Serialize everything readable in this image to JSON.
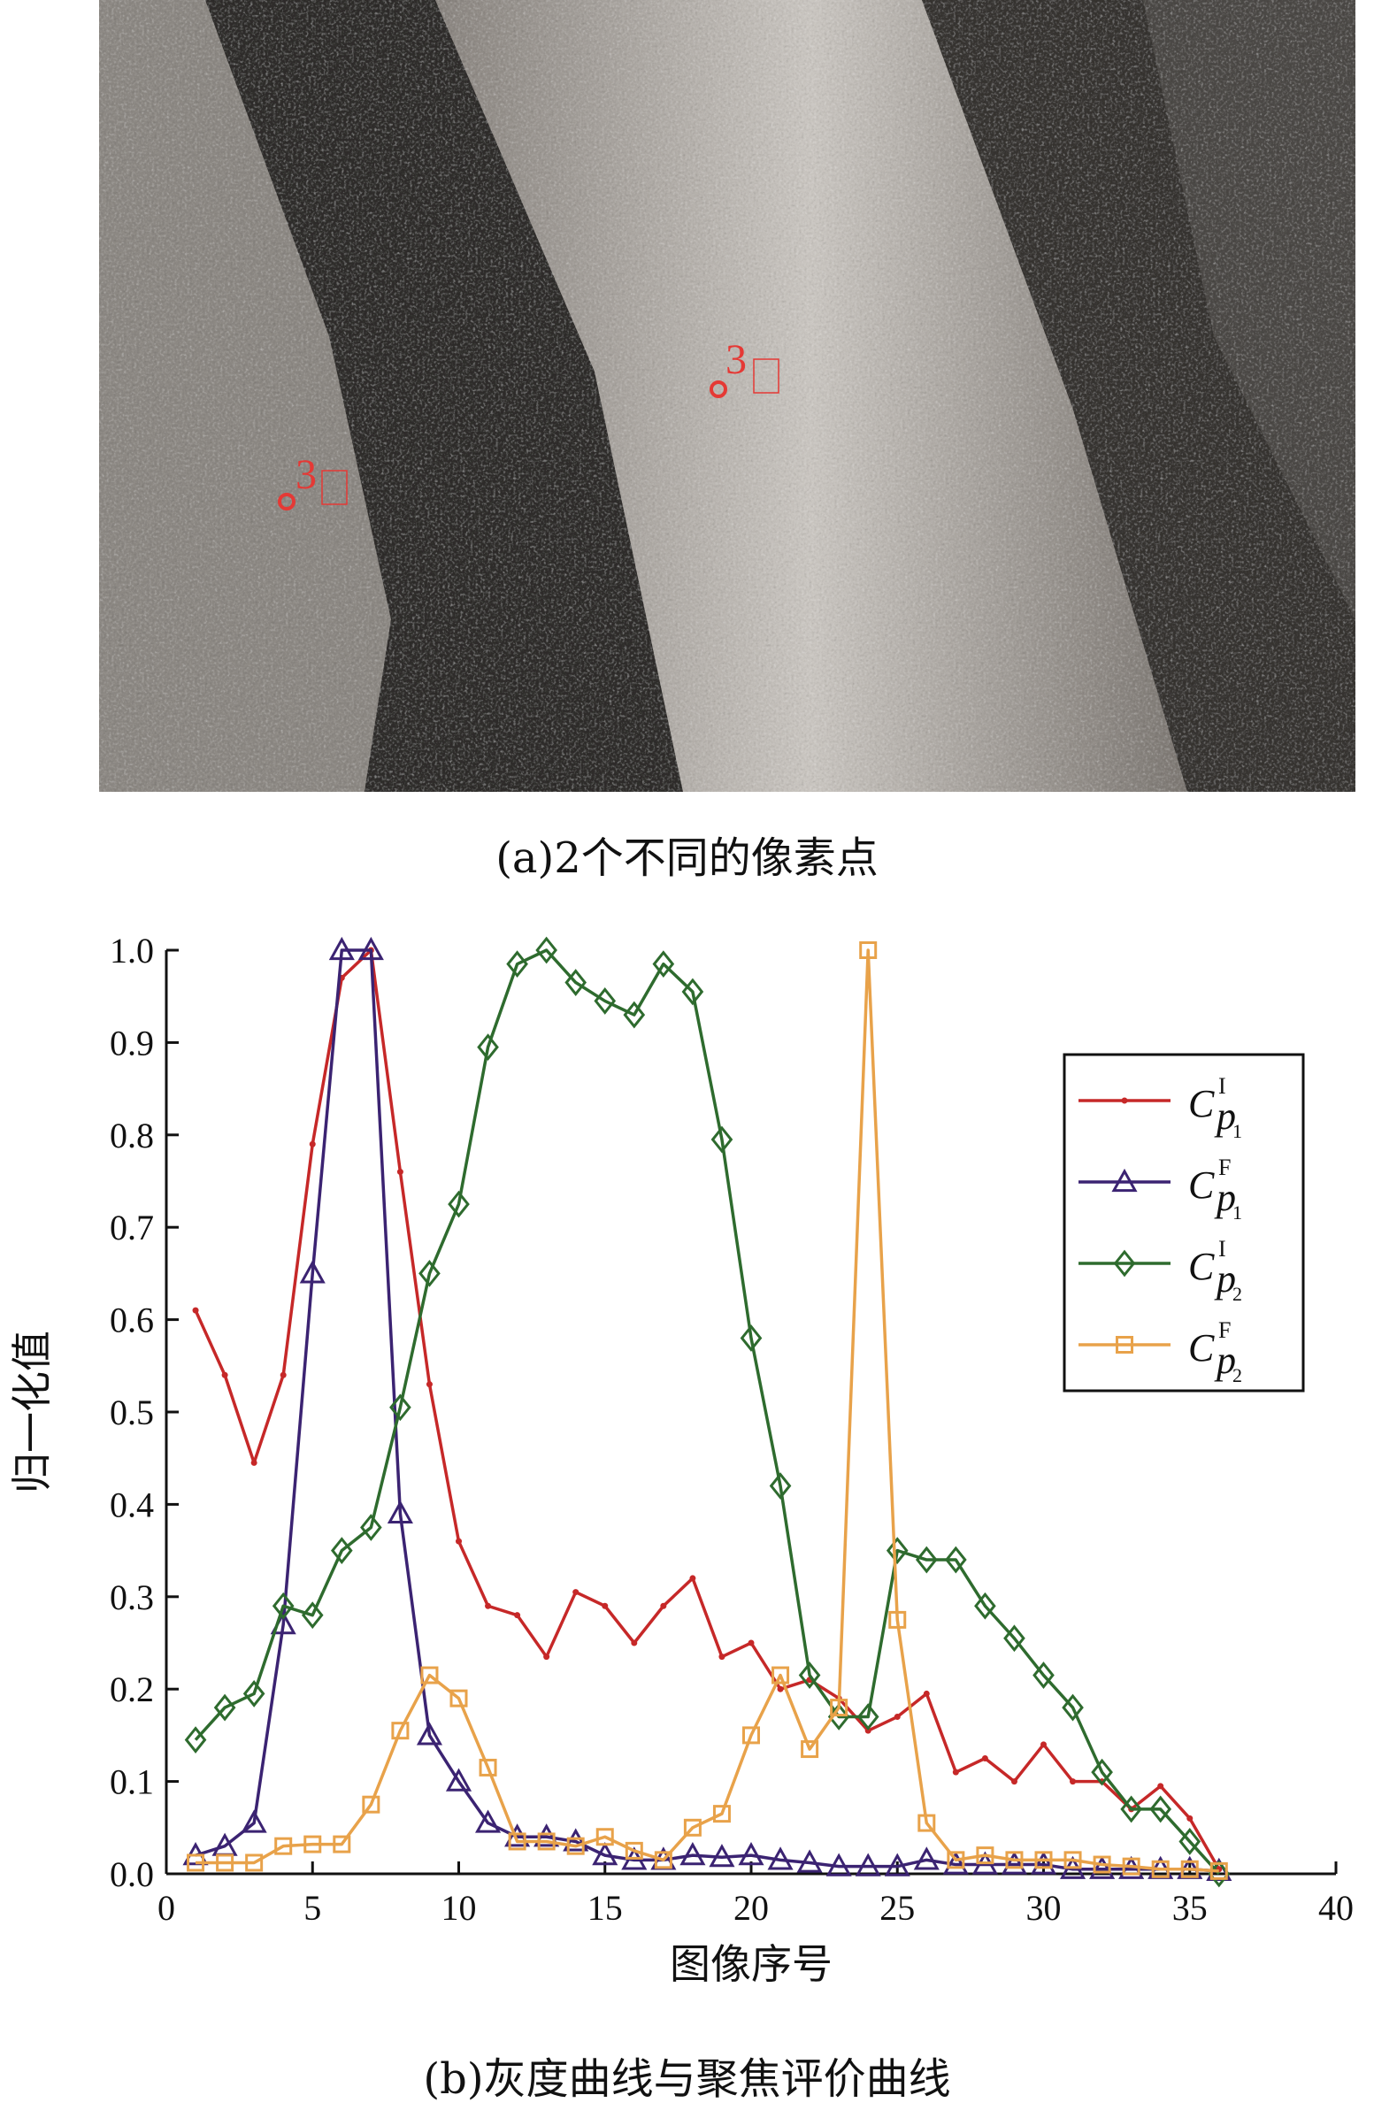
{
  "captions": {
    "a": "(a)2个不同的像素点",
    "b": "(b)灰度曲线与聚焦评价曲线"
  },
  "photo": {
    "markers": [
      {
        "label": "3"
      },
      {
        "label": "3"
      }
    ],
    "marker_color": "#e53935"
  },
  "chart_data": {
    "type": "line",
    "xlabel": "图像序号",
    "ylabel": "归一化值",
    "xlim": [
      0,
      40
    ],
    "ylim": [
      0,
      1.0
    ],
    "xticks": [
      0,
      5,
      10,
      15,
      20,
      25,
      30,
      35,
      40
    ],
    "yticks": [
      0.0,
      0.1,
      0.2,
      0.3,
      0.4,
      0.5,
      0.6,
      0.7,
      0.8,
      0.9,
      1.0
    ],
    "ytick_labels": [
      "0.0",
      "0.1",
      "0.2",
      "0.3",
      "0.4",
      "0.5",
      "0.6",
      "0.7",
      "0.8",
      "0.9",
      "1.0"
    ],
    "grid": false,
    "legend_position": "top-right",
    "x": [
      1,
      2,
      3,
      4,
      5,
      6,
      7,
      8,
      9,
      10,
      11,
      12,
      13,
      14,
      15,
      16,
      17,
      18,
      19,
      20,
      21,
      22,
      23,
      24,
      25,
      26,
      27,
      28,
      29,
      30,
      31,
      32,
      33,
      34,
      35,
      36
    ],
    "series": [
      {
        "name": "C_p1^I",
        "legend": {
          "base": "C",
          "sub": "p",
          "subsub": "1",
          "sup": "I"
        },
        "color": "#c62828",
        "marker": "dot",
        "values": [
          0.61,
          0.54,
          0.445,
          0.54,
          0.79,
          0.97,
          1.0,
          0.76,
          0.53,
          0.36,
          0.29,
          0.28,
          0.235,
          0.305,
          0.29,
          0.25,
          0.29,
          0.32,
          0.235,
          0.25,
          0.2,
          0.21,
          0.19,
          0.155,
          0.17,
          0.195,
          0.11,
          0.125,
          0.1,
          0.14,
          0.1,
          0.1,
          0.07,
          0.095,
          0.06,
          0.005
        ]
      },
      {
        "name": "C_p1^F",
        "legend": {
          "base": "C",
          "sub": "p",
          "subsub": "1",
          "sup": "F"
        },
        "color": "#3b2372",
        "marker": "triangle",
        "values": [
          0.02,
          0.03,
          0.055,
          0.27,
          0.65,
          1.0,
          1.0,
          0.39,
          0.15,
          0.1,
          0.055,
          0.04,
          0.04,
          0.035,
          0.02,
          0.015,
          0.015,
          0.02,
          0.018,
          0.02,
          0.015,
          0.012,
          0.008,
          0.008,
          0.008,
          0.015,
          0.01,
          0.01,
          0.01,
          0.01,
          0.005,
          0.005,
          0.005,
          0.005,
          0.005,
          0.003
        ]
      },
      {
        "name": "C_p2^I",
        "legend": {
          "base": "C",
          "sub": "p",
          "subsub": "2",
          "sup": "I"
        },
        "color": "#2e6b2e",
        "marker": "diamond",
        "values": [
          0.145,
          0.18,
          0.195,
          0.29,
          0.28,
          0.35,
          0.375,
          0.505,
          0.65,
          0.725,
          0.895,
          0.985,
          1.0,
          0.965,
          0.945,
          0.93,
          0.985,
          0.955,
          0.795,
          0.58,
          0.42,
          0.215,
          0.17,
          0.17,
          0.35,
          0.34,
          0.34,
          0.29,
          0.255,
          0.215,
          0.18,
          0.11,
          0.07,
          0.07,
          0.035,
          0.0
        ]
      },
      {
        "name": "C_p2^F",
        "legend": {
          "base": "C",
          "sub": "p",
          "subsub": "2",
          "sup": "F"
        },
        "color": "#e8a24a",
        "marker": "square",
        "values": [
          0.012,
          0.012,
          0.012,
          0.03,
          0.032,
          0.032,
          0.075,
          0.155,
          0.215,
          0.19,
          0.115,
          0.035,
          0.035,
          0.03,
          0.04,
          0.025,
          0.015,
          0.05,
          0.065,
          0.15,
          0.215,
          0.135,
          0.18,
          1.0,
          0.275,
          0.055,
          0.015,
          0.02,
          0.015,
          0.015,
          0.015,
          0.01,
          0.008,
          0.005,
          0.005,
          0.003
        ]
      }
    ]
  }
}
